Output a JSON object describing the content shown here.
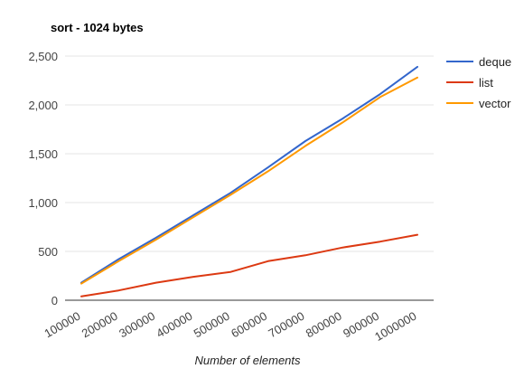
{
  "chart_data": {
    "type": "line",
    "title": "sort - 1024 bytes",
    "xlabel": "Number of elements",
    "ylabel": "",
    "x": [
      100000,
      200000,
      300000,
      400000,
      500000,
      600000,
      700000,
      800000,
      900000,
      1000000
    ],
    "x_tick_labels": [
      "100000",
      "200000",
      "300000",
      "400000",
      "500000",
      "600000",
      "700000",
      "800000",
      "900000",
      "1000000"
    ],
    "ylim": [
      0,
      2500
    ],
    "y_ticks": [
      0,
      500,
      1000,
      1500,
      2000,
      2500
    ],
    "y_tick_labels": [
      "0",
      "500",
      "1,000",
      "1,500",
      "2,000",
      "2,500"
    ],
    "grid": true,
    "legend_position": "right",
    "series": [
      {
        "name": "deque",
        "color": "#3366cc",
        "values": [
          180,
          420,
          640,
          870,
          1100,
          1360,
          1630,
          1860,
          2110,
          2390
        ]
      },
      {
        "name": "list",
        "color": "#dc3912",
        "values": [
          40,
          100,
          180,
          240,
          290,
          400,
          460,
          540,
          600,
          670
        ]
      },
      {
        "name": "vector",
        "color": "#ff9900",
        "values": [
          170,
          400,
          620,
          850,
          1080,
          1320,
          1580,
          1820,
          2080,
          2280
        ]
      }
    ]
  }
}
